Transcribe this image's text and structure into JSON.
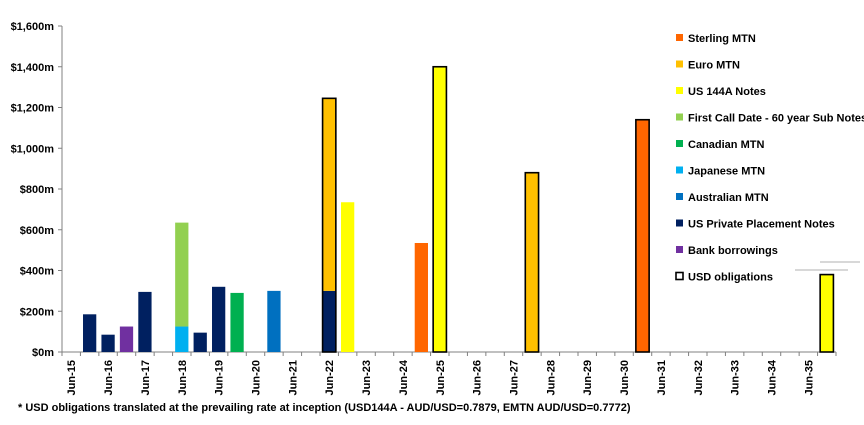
{
  "chart_data": {
    "type": "bar",
    "stacked": true,
    "title": "",
    "xlabel": "",
    "ylabel": "",
    "ylim": [
      0,
      1600
    ],
    "yticks": [
      0,
      200,
      400,
      600,
      800,
      1000,
      1200,
      1400,
      1600
    ],
    "ytick_labels": [
      "$0m",
      "$200m",
      "$400m",
      "$600m",
      "$800m",
      "$1,000m",
      "$1,200m",
      "$1,400m",
      "$1,600m"
    ],
    "x_tick_labels": [
      "Jun-15",
      "Jun-16",
      "Jun-17",
      "Jun-18",
      "Jun-19",
      "Jun-20",
      "Jun-21",
      "Jun-22",
      "Jun-23",
      "Jun-24",
      "Jun-25",
      "Jun-26",
      "Jun-27",
      "Jun-28",
      "Jun-29",
      "Jun-30",
      "Jun-31",
      "Jun-32",
      "Jun-33",
      "Jun-34",
      "Jun-35"
    ],
    "categories_per_year": 2,
    "grid": false,
    "legend_position": "right",
    "series": [
      {
        "name": "Sterling MTN",
        "color": "#FF6600",
        "points": [
          {
            "slot": 19,
            "value": 535
          },
          {
            "slot": 31,
            "value": 1140
          }
        ]
      },
      {
        "name": "Euro MTN",
        "color": "#FFC000",
        "points": [
          {
            "slot": 14,
            "value": 945
          },
          {
            "slot": 25,
            "value": 880
          }
        ]
      },
      {
        "name": "US 144A Notes",
        "color": "#FFFF00",
        "points": [
          {
            "slot": 15,
            "value": 735
          },
          {
            "slot": 20,
            "value": 1400
          },
          {
            "slot": 41,
            "value": 380
          }
        ]
      },
      {
        "name": "First Call Date - 60 year Sub Notes",
        "color": "#92D050",
        "points": [
          {
            "slot": 6,
            "value": 510
          }
        ]
      },
      {
        "name": "Canadian MTN",
        "color": "#00B050",
        "points": [
          {
            "slot": 9,
            "value": 290
          }
        ]
      },
      {
        "name": "Japanese MTN",
        "color": "#00B0F0",
        "points": [
          {
            "slot": 6,
            "value": 125
          }
        ]
      },
      {
        "name": "Australian MTN",
        "color": "#0070C0",
        "points": [
          {
            "slot": 11,
            "value": 300
          }
        ]
      },
      {
        "name": "US Private Placement Notes",
        "color": "#002060",
        "points": [
          {
            "slot": 1,
            "value": 185
          },
          {
            "slot": 2,
            "value": 85
          },
          {
            "slot": 4,
            "value": 295
          },
          {
            "slot": 7,
            "value": 95
          },
          {
            "slot": 8,
            "value": 320
          },
          {
            "slot": 14,
            "value": 300
          }
        ]
      },
      {
        "name": "Bank borrowings",
        "color": "#7030A0",
        "points": [
          {
            "slot": 3,
            "value": 125
          }
        ]
      }
    ],
    "stack_order": [
      "US Private Placement Notes",
      "Japanese MTN",
      "Bank borrowings",
      "Canadian MTN",
      "Australian MTN",
      "First Call Date - 60 year Sub Notes",
      "Euro MTN",
      "US 144A Notes",
      "Sterling MTN"
    ],
    "usd_obligations": {
      "name": "USD obligations",
      "outlined_slots": [
        14,
        20,
        25,
        31,
        41
      ]
    },
    "footnote": "* USD obligations translated at the prevailing rate at inception (USD144A - AUD/USD=0.7879, EMTN AUD/USD=0.7772)"
  }
}
